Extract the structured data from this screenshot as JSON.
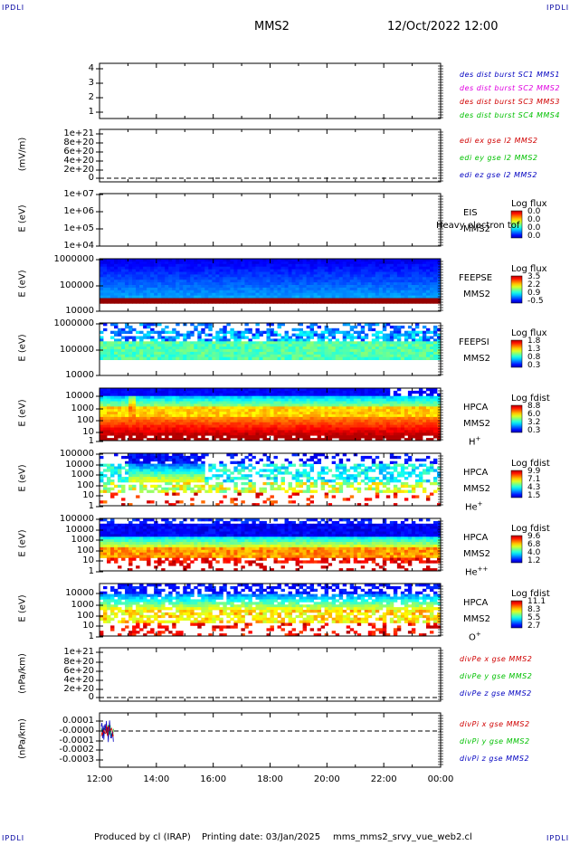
{
  "header": {
    "corner_tl": "IPDLI",
    "corner_tr": "IPDLI",
    "corner_bl": "IPDLI",
    "corner_br": "IPDLI",
    "spacecraft": "MMS2",
    "datetime": "12/Oct/2022 12:00"
  },
  "footer": {
    "produced_by": "Produced by cl (IRAP)",
    "printing_date": "Printing date: 03/Jan/2025",
    "filename": "mms_mms2_srvy_vue_web2.cl"
  },
  "colors": {
    "red": "#d00000",
    "magenta": "#e000e0",
    "green": "#00c000",
    "blue": "#0000c0"
  },
  "chart_data": [
    {
      "type": "line",
      "id": "burst",
      "ylabel": "",
      "ylim": [
        0.5,
        4.5
      ],
      "yticks": [
        "4",
        "3",
        "2",
        "1"
      ],
      "legend": [
        {
          "label": "des dist burst SC1 MMS1",
          "color": "#0000c0"
        },
        {
          "label": "des dist burst SC2 MMS2",
          "color": "#e000e0"
        },
        {
          "label": "des dist burst SC3 MMS3",
          "color": "#d00000"
        },
        {
          "label": "des dist burst SC4 MMS4",
          "color": "#00c000"
        }
      ],
      "series": []
    },
    {
      "type": "line",
      "id": "edi",
      "ylabel": "(mV/m)",
      "yticks": [
        "1e+21",
        "8e+20",
        "6e+20",
        "4e+20",
        "2e+20",
        "0"
      ],
      "legend": [
        {
          "label": "edi ex gse l2 MMS2",
          "color": "#d00000"
        },
        {
          "label": "edi ey gse l2 MMS2",
          "color": "#00c000"
        },
        {
          "label": "edi ez gse l2 MMS2",
          "color": "#0000c0"
        }
      ],
      "zero_line": true
    },
    {
      "type": "heatmap",
      "id": "eis",
      "ylabel": "E (eV)",
      "yticks": [
        "1e+07",
        "1e+06",
        "1e+05",
        "1e+04"
      ],
      "instrument": [
        "EIS",
        "MMS2"
      ],
      "overlay_text": "Heavy electron tof",
      "colorbar_label": "Log flux",
      "colorbar_ticks": [
        "0.0",
        "0.0",
        "0.0",
        "0.0"
      ],
      "fill": "empty"
    },
    {
      "type": "heatmap",
      "id": "feepse",
      "ylabel": "E (eV)",
      "yticks": [
        "1000000",
        "100000",
        "10000"
      ],
      "instrument": [
        "FEEPSE",
        "MMS2"
      ],
      "colorbar_label": "Log flux",
      "colorbar_ticks": [
        "3.5",
        "2.2",
        "0.9",
        "-0.5"
      ],
      "fill": "feepse"
    },
    {
      "type": "heatmap",
      "id": "feepsi",
      "ylabel": "E (eV)",
      "yticks": [
        "1000000",
        "100000",
        "10000"
      ],
      "instrument": [
        "FEEPSI",
        "MMS2"
      ],
      "colorbar_label": "Log flux",
      "colorbar_ticks": [
        "1.8",
        "1.3",
        "0.8",
        "0.3"
      ],
      "fill": "feepsi"
    },
    {
      "type": "heatmap",
      "id": "hpca_h",
      "ylabel": "E (eV)",
      "yticks": [
        "10000",
        "1000",
        "100",
        "10",
        "1"
      ],
      "instrument": [
        "HPCA",
        "MMS2"
      ],
      "species": "H",
      "species_sup": "+",
      "colorbar_label": "Log fdist",
      "colorbar_ticks": [
        "8.8",
        "6.0",
        "3.2",
        "0.3"
      ],
      "fill": "hplus"
    },
    {
      "type": "heatmap",
      "id": "hpca_he",
      "ylabel": "E (eV)",
      "yticks": [
        "100000",
        "10000",
        "1000",
        "100",
        "10",
        "1"
      ],
      "instrument": [
        "HPCA",
        "MMS2"
      ],
      "species": "He",
      "species_sup": "+",
      "colorbar_label": "Log fdist",
      "colorbar_ticks": [
        "9.9",
        "7.1",
        "4.3",
        "1.5"
      ],
      "fill": "heplus"
    },
    {
      "type": "heatmap",
      "id": "hpca_hepp",
      "ylabel": "E (eV)",
      "yticks": [
        "100000",
        "10000",
        "1000",
        "100",
        "10",
        "1"
      ],
      "instrument": [
        "HPCA",
        "MMS2"
      ],
      "species": "He",
      "species_sup": "++",
      "colorbar_label": "Log fdist",
      "colorbar_ticks": [
        "9.6",
        "6.8",
        "4.0",
        "1.2"
      ],
      "fill": "hepp"
    },
    {
      "type": "heatmap",
      "id": "hpca_o",
      "ylabel": "E (eV)",
      "yticks": [
        "10000",
        "1000",
        "100",
        "10",
        "1"
      ],
      "instrument": [
        "HPCA",
        "MMS2"
      ],
      "species": "O",
      "species_sup": "+",
      "colorbar_label": "Log fdist",
      "colorbar_ticks": [
        "11.1",
        "8.3",
        "5.5",
        "2.7"
      ],
      "fill": "oplus"
    },
    {
      "type": "line",
      "id": "divpe",
      "ylabel": "(nPa/km)",
      "yticks": [
        "1e+21",
        "8e+20",
        "6e+20",
        "4e+20",
        "2e+20",
        "0"
      ],
      "legend": [
        {
          "label": "divPe x gse MMS2",
          "color": "#d00000"
        },
        {
          "label": "divPe y gse MMS2",
          "color": "#00c000"
        },
        {
          "label": "divPe z gse MMS2",
          "color": "#0000c0"
        }
      ],
      "zero_line": true
    },
    {
      "type": "line",
      "id": "divpi",
      "ylabel": "(nPa/km)",
      "yticks": [
        "0.0001",
        "-0.0000",
        "-0.0001",
        "-0.0002",
        "-0.0003"
      ],
      "legend": [
        {
          "label": "divPi x gse MMS2",
          "color": "#d00000"
        },
        {
          "label": "divPi y gse MMS2",
          "color": "#00c000"
        },
        {
          "label": "divPi z gse MMS2",
          "color": "#0000c0"
        }
      ],
      "zero_line": true,
      "burst_window": [
        "12:00",
        "12:30"
      ]
    }
  ],
  "xaxis": {
    "ticks": [
      "12:00",
      "14:00",
      "16:00",
      "18:00",
      "20:00",
      "22:00",
      "00:00"
    ]
  }
}
